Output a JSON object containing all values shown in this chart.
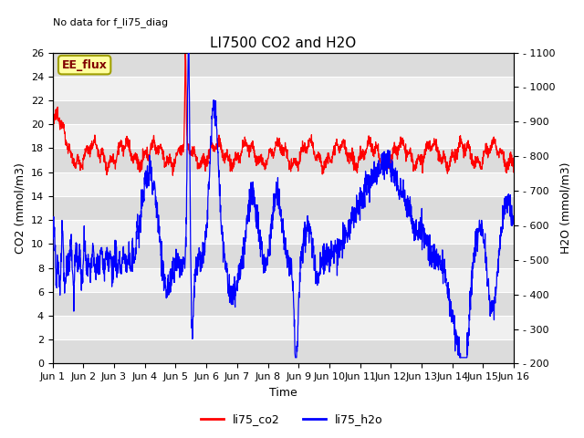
{
  "title": "LI7500 CO2 and H2O",
  "top_left_text": "No data for f_li75_diag",
  "xlabel": "Time",
  "ylabel_left": "CO2 (mmol/m3)",
  "ylabel_right": "H2O (mmol/m3)",
  "ylim_left": [
    0,
    26
  ],
  "ylim_right": [
    200,
    1100
  ],
  "yticks_left": [
    0,
    2,
    4,
    6,
    8,
    10,
    12,
    14,
    16,
    18,
    20,
    22,
    24,
    26
  ],
  "yticks_right": [
    200,
    300,
    400,
    500,
    600,
    700,
    800,
    900,
    1000,
    1100
  ],
  "xtick_labels": [
    "Jun 1",
    "Jun 2",
    "Jun 3",
    "Jun 4",
    "Jun 5",
    "Jun 6",
    "Jun 7",
    "Jun 8",
    "Jun 9",
    "Jun 10",
    "Jun 11",
    "Jun 12",
    "Jun 13",
    "Jun 14",
    "Jun 15",
    "Jun 16"
  ],
  "co2_color": "#ff0000",
  "h2o_color": "#0000ff",
  "plot_bg_light": "#f0f0f0",
  "plot_bg_dark": "#dcdcdc",
  "legend_box_facecolor": "#ffffa0",
  "legend_box_edgecolor": "#a0a000",
  "legend_box_text": "EE_flux",
  "legend_box_text_color": "#800000",
  "legend_entries": [
    "li75_co2",
    "li75_h2o"
  ],
  "fig_bg_color": "#ffffff",
  "grid_color": "#ffffff",
  "tick_fontsize": 8,
  "label_fontsize": 9,
  "title_fontsize": 11
}
